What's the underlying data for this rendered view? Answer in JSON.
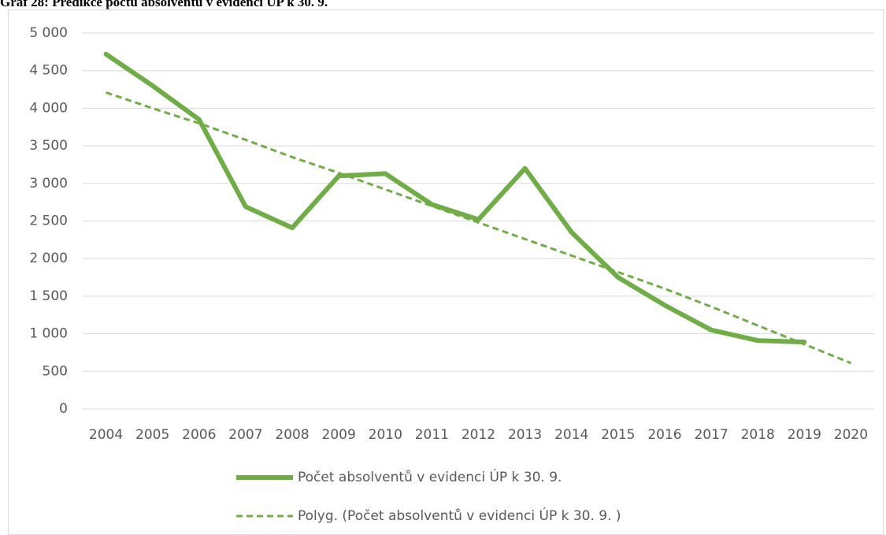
{
  "chart_data": {
    "type": "line",
    "title": "Graf 28: Predikce počtu absolventů v evidenci ÚP k 30. 9.",
    "categories": [
      "2004",
      "2005",
      "2006",
      "2007",
      "2008",
      "2009",
      "2010",
      "2011",
      "2012",
      "2013",
      "2014",
      "2015",
      "2016",
      "2017",
      "2018",
      "2019",
      "2020"
    ],
    "series": [
      {
        "name": "Počet absolventů v evidenci ÚP k 30. 9.",
        "color": "#70ad47",
        "style": "solid",
        "values": [
          4720,
          4300,
          3850,
          2690,
          2410,
          3100,
          3130,
          2720,
          2520,
          3200,
          2350,
          1750,
          1380,
          1050,
          910,
          890,
          null
        ]
      },
      {
        "name": "Polyg. (Počet absolventů v evidenci ÚP k 30. 9. )",
        "color": "#70ad47",
        "style": "dashed",
        "values": [
          4210,
          4000,
          3800,
          3580,
          3350,
          3140,
          2920,
          2700,
          2480,
          2260,
          2040,
          1820,
          1600,
          1360,
          1110,
          860,
          610
        ]
      }
    ],
    "ylim": [
      0,
      5000
    ],
    "yticks": [
      0,
      500,
      {
        "value": 1000,
        "label": "1 000"
      },
      {
        "value": 1500,
        "label": "1 500"
      },
      {
        "value": 2000,
        "label": "2 000"
      },
      {
        "value": 2500,
        "label": "2 500"
      },
      {
        "value": 3000,
        "label": "3 000"
      },
      {
        "value": 3500,
        "label": "3 500"
      },
      {
        "value": 4000,
        "label": "4 000"
      },
      {
        "value": 4500,
        "label": "4 500"
      },
      {
        "value": 5000,
        "label": "5 000"
      }
    ],
    "grid": true,
    "legend": "bottom"
  }
}
